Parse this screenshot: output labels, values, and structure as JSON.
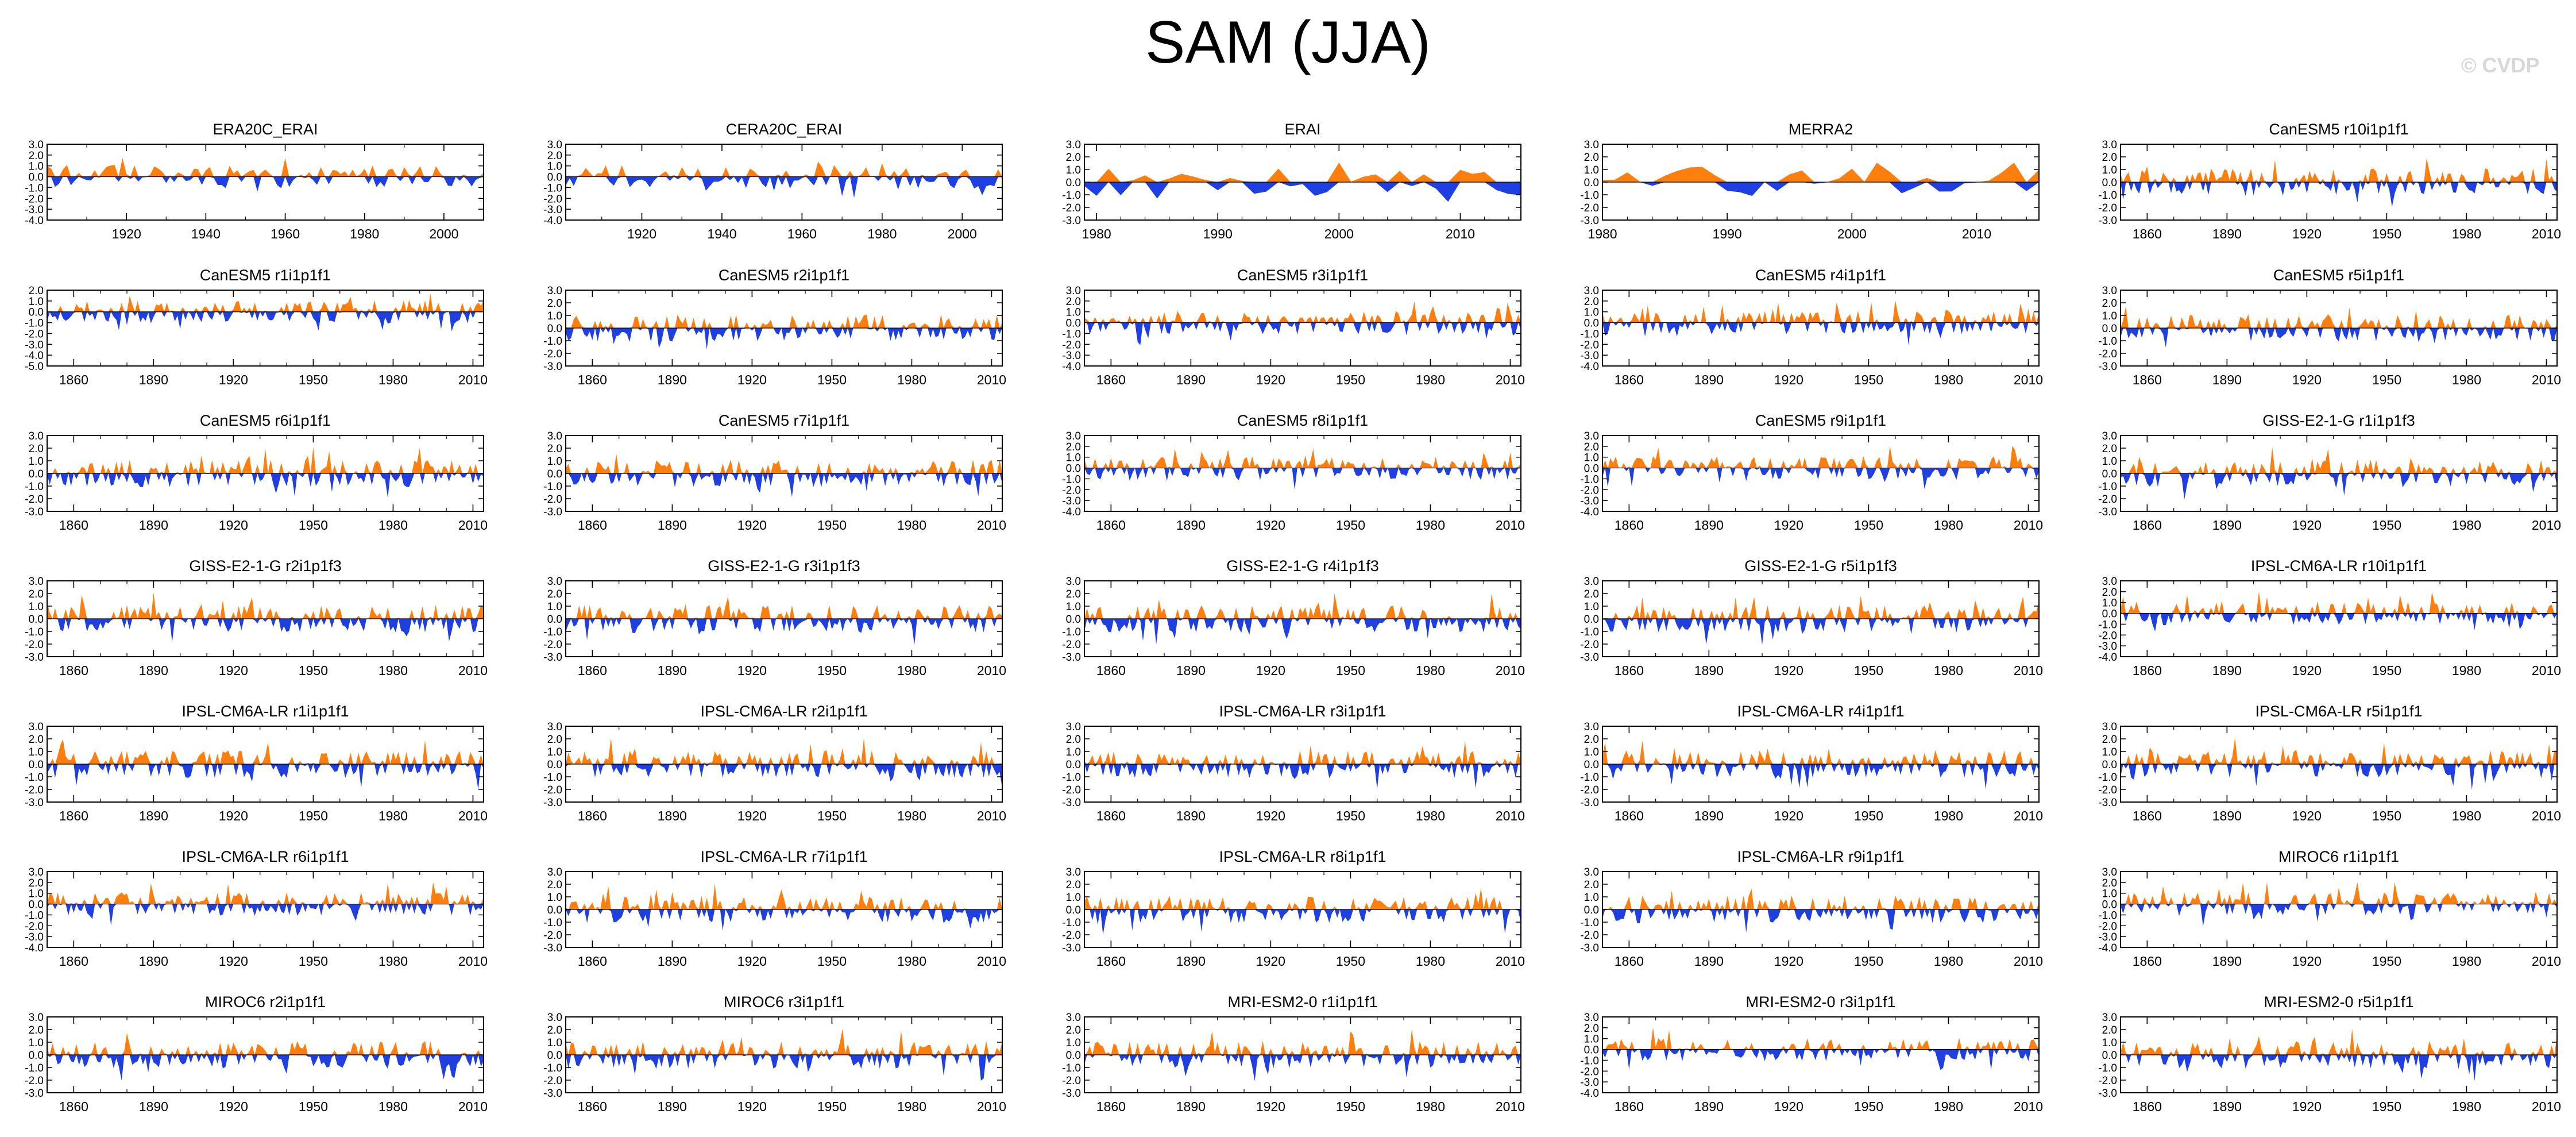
{
  "title": "SAM (JJA)",
  "watermark": "© CVDP",
  "colors": {
    "positive": "#ff7f0e",
    "negative": "#1f3fe0",
    "axis": "#000000"
  },
  "chart_data": [
    {
      "type": "area",
      "title": "ERA20C_ERAI",
      "x_range": [
        1900,
        2010
      ],
      "xticks": [
        1920,
        1940,
        1960,
        1980,
        2000
      ],
      "yticks": [
        "3.0",
        "2.0",
        "1.0",
        "0.0",
        "-1.0",
        "-2.0",
        "-3.0",
        "-4.0"
      ],
      "ylim": [
        -4,
        3
      ],
      "seed": 11
    },
    {
      "type": "area",
      "title": "CERA20C_ERAI",
      "x_range": [
        1901,
        2010
      ],
      "xticks": [
        1920,
        1940,
        1960,
        1980,
        2000
      ],
      "yticks": [
        "3.0",
        "2.0",
        "1.0",
        "0.0",
        "-1.0",
        "-2.0",
        "-3.0",
        "-4.0"
      ],
      "ylim": [
        -4,
        3
      ],
      "seed": 12
    },
    {
      "type": "area",
      "title": "ERAI",
      "x_range": [
        1979,
        2015
      ],
      "xticks": [
        1980,
        1990,
        2000,
        2010
      ],
      "yticks": [
        "3.0",
        "2.0",
        "1.0",
        "0.0",
        "-1.0",
        "-2.0",
        "-3.0"
      ],
      "ylim": [
        -3,
        3
      ],
      "seed": 13
    },
    {
      "type": "area",
      "title": "MERRA2",
      "x_range": [
        1980,
        2015
      ],
      "xticks": [
        1980,
        1990,
        2000,
        2010
      ],
      "yticks": [
        "3.0",
        "2.0",
        "1.0",
        "0.0",
        "-1.0",
        "-2.0",
        "-3.0"
      ],
      "ylim": [
        -3,
        3
      ],
      "seed": 14
    },
    {
      "type": "area",
      "title": "CanESM5 r10i1p1f1",
      "x_range": [
        1850,
        2014
      ],
      "xticks": [
        1860,
        1890,
        1920,
        1950,
        1980,
        2010
      ],
      "yticks": [
        "3.0",
        "2.0",
        "1.0",
        "0.0",
        "-1.0",
        "-2.0",
        "-3.0"
      ],
      "ylim": [
        -3,
        3
      ],
      "seed": 15
    },
    {
      "type": "area",
      "title": "CanESM5 r1i1p1f1",
      "x_range": [
        1850,
        2014
      ],
      "xticks": [
        1860,
        1890,
        1920,
        1950,
        1980,
        2010
      ],
      "yticks": [
        "2.0",
        "1.0",
        "0.0",
        "-1.0",
        "-2.0",
        "-3.0",
        "-4.0",
        "-5.0"
      ],
      "ylim": [
        -5,
        2
      ],
      "seed": 21
    },
    {
      "type": "area",
      "title": "CanESM5 r2i1p1f1",
      "x_range": [
        1850,
        2014
      ],
      "xticks": [
        1860,
        1890,
        1920,
        1950,
        1980,
        2010
      ],
      "yticks": [
        "3.0",
        "2.0",
        "1.0",
        "0.0",
        "-1.0",
        "-2.0",
        "-3.0"
      ],
      "ylim": [
        -3,
        3
      ],
      "seed": 22
    },
    {
      "type": "area",
      "title": "CanESM5 r3i1p1f1",
      "x_range": [
        1850,
        2014
      ],
      "xticks": [
        1860,
        1890,
        1920,
        1950,
        1980,
        2010
      ],
      "yticks": [
        "3.0",
        "2.0",
        "1.0",
        "0.0",
        "-1.0",
        "-2.0",
        "-3.0",
        "-4.0"
      ],
      "ylim": [
        -4,
        3
      ],
      "seed": 23
    },
    {
      "type": "area",
      "title": "CanESM5 r4i1p1f1",
      "x_range": [
        1850,
        2014
      ],
      "xticks": [
        1860,
        1890,
        1920,
        1950,
        1980,
        2010
      ],
      "yticks": [
        "3.0",
        "2.0",
        "1.0",
        "0.0",
        "-1.0",
        "-2.0",
        "-3.0",
        "-4.0"
      ],
      "ylim": [
        -4,
        3
      ],
      "seed": 24
    },
    {
      "type": "area",
      "title": "CanESM5 r5i1p1f1",
      "x_range": [
        1850,
        2014
      ],
      "xticks": [
        1860,
        1890,
        1920,
        1950,
        1980,
        2010
      ],
      "yticks": [
        "3.0",
        "2.0",
        "1.0",
        "0.0",
        "-1.0",
        "-2.0",
        "-3.0"
      ],
      "ylim": [
        -3,
        3
      ],
      "seed": 25
    },
    {
      "type": "area",
      "title": "CanESM5 r6i1p1f1",
      "x_range": [
        1850,
        2014
      ],
      "xticks": [
        1860,
        1890,
        1920,
        1950,
        1980,
        2010
      ],
      "yticks": [
        "3.0",
        "2.0",
        "1.0",
        "0.0",
        "-1.0",
        "-2.0",
        "-3.0"
      ],
      "ylim": [
        -3,
        3
      ],
      "seed": 31
    },
    {
      "type": "area",
      "title": "CanESM5 r7i1p1f1",
      "x_range": [
        1850,
        2014
      ],
      "xticks": [
        1860,
        1890,
        1920,
        1950,
        1980,
        2010
      ],
      "yticks": [
        "3.0",
        "2.0",
        "1.0",
        "0.0",
        "-1.0",
        "-2.0",
        "-3.0"
      ],
      "ylim": [
        -3,
        3
      ],
      "seed": 32
    },
    {
      "type": "area",
      "title": "CanESM5 r8i1p1f1",
      "x_range": [
        1850,
        2014
      ],
      "xticks": [
        1860,
        1890,
        1920,
        1950,
        1980,
        2010
      ],
      "yticks": [
        "3.0",
        "2.0",
        "1.0",
        "0.0",
        "-1.0",
        "-2.0",
        "-3.0",
        "-4.0"
      ],
      "ylim": [
        -4,
        3
      ],
      "seed": 33
    },
    {
      "type": "area",
      "title": "CanESM5 r9i1p1f1",
      "x_range": [
        1850,
        2014
      ],
      "xticks": [
        1860,
        1890,
        1920,
        1950,
        1980,
        2010
      ],
      "yticks": [
        "3.0",
        "2.0",
        "1.0",
        "0.0",
        "-1.0",
        "-2.0",
        "-3.0",
        "-4.0"
      ],
      "ylim": [
        -4,
        3
      ],
      "seed": 34
    },
    {
      "type": "area",
      "title": "GISS-E2-1-G r1i1p1f3",
      "x_range": [
        1850,
        2014
      ],
      "xticks": [
        1860,
        1890,
        1920,
        1950,
        1980,
        2010
      ],
      "yticks": [
        "3.0",
        "2.0",
        "1.0",
        "0.0",
        "-1.0",
        "-2.0",
        "-3.0"
      ],
      "ylim": [
        -3,
        3
      ],
      "seed": 35
    },
    {
      "type": "area",
      "title": "GISS-E2-1-G r2i1p1f3",
      "x_range": [
        1850,
        2014
      ],
      "xticks": [
        1860,
        1890,
        1920,
        1950,
        1980,
        2010
      ],
      "yticks": [
        "3.0",
        "2.0",
        "1.0",
        "0.0",
        "-1.0",
        "-2.0",
        "-3.0"
      ],
      "ylim": [
        -3,
        3
      ],
      "seed": 41
    },
    {
      "type": "area",
      "title": "GISS-E2-1-G r3i1p1f3",
      "x_range": [
        1850,
        2014
      ],
      "xticks": [
        1860,
        1890,
        1920,
        1950,
        1980,
        2010
      ],
      "yticks": [
        "3.0",
        "2.0",
        "1.0",
        "0.0",
        "-1.0",
        "-2.0",
        "-3.0"
      ],
      "ylim": [
        -3,
        3
      ],
      "seed": 42
    },
    {
      "type": "area",
      "title": "GISS-E2-1-G r4i1p1f3",
      "x_range": [
        1850,
        2014
      ],
      "xticks": [
        1860,
        1890,
        1920,
        1950,
        1980,
        2010
      ],
      "yticks": [
        "3.0",
        "2.0",
        "1.0",
        "0.0",
        "-1.0",
        "-2.0",
        "-3.0"
      ],
      "ylim": [
        -3,
        3
      ],
      "seed": 43
    },
    {
      "type": "area",
      "title": "GISS-E2-1-G r5i1p1f3",
      "x_range": [
        1850,
        2014
      ],
      "xticks": [
        1860,
        1890,
        1920,
        1950,
        1980,
        2010
      ],
      "yticks": [
        "3.0",
        "2.0",
        "1.0",
        "0.0",
        "-1.0",
        "-2.0",
        "-3.0"
      ],
      "ylim": [
        -3,
        3
      ],
      "seed": 44
    },
    {
      "type": "area",
      "title": "IPSL-CM6A-LR r10i1p1f1",
      "x_range": [
        1850,
        2014
      ],
      "xticks": [
        1860,
        1890,
        1920,
        1950,
        1980,
        2010
      ],
      "yticks": [
        "3.0",
        "2.0",
        "1.0",
        "0.0",
        "-1.0",
        "-2.0",
        "-3.0",
        "-4.0"
      ],
      "ylim": [
        -4,
        3
      ],
      "seed": 45
    },
    {
      "type": "area",
      "title": "IPSL-CM6A-LR r1i1p1f1",
      "x_range": [
        1850,
        2014
      ],
      "xticks": [
        1860,
        1890,
        1920,
        1950,
        1980,
        2010
      ],
      "yticks": [
        "3.0",
        "2.0",
        "1.0",
        "0.0",
        "-1.0",
        "-2.0",
        "-3.0"
      ],
      "ylim": [
        -3,
        3
      ],
      "seed": 51
    },
    {
      "type": "area",
      "title": "IPSL-CM6A-LR r2i1p1f1",
      "x_range": [
        1850,
        2014
      ],
      "xticks": [
        1860,
        1890,
        1920,
        1950,
        1980,
        2010
      ],
      "yticks": [
        "3.0",
        "2.0",
        "1.0",
        "0.0",
        "-1.0",
        "-2.0",
        "-3.0"
      ],
      "ylim": [
        -3,
        3
      ],
      "seed": 52
    },
    {
      "type": "area",
      "title": "IPSL-CM6A-LR r3i1p1f1",
      "x_range": [
        1850,
        2014
      ],
      "xticks": [
        1860,
        1890,
        1920,
        1950,
        1980,
        2010
      ],
      "yticks": [
        "3.0",
        "2.0",
        "1.0",
        "0.0",
        "-1.0",
        "-2.0",
        "-3.0"
      ],
      "ylim": [
        -3,
        3
      ],
      "seed": 53
    },
    {
      "type": "area",
      "title": "IPSL-CM6A-LR r4i1p1f1",
      "x_range": [
        1850,
        2014
      ],
      "xticks": [
        1860,
        1890,
        1920,
        1950,
        1980,
        2010
      ],
      "yticks": [
        "3.0",
        "2.0",
        "1.0",
        "0.0",
        "-1.0",
        "-2.0",
        "-3.0"
      ],
      "ylim": [
        -3,
        3
      ],
      "seed": 54
    },
    {
      "type": "area",
      "title": "IPSL-CM6A-LR r5i1p1f1",
      "x_range": [
        1850,
        2014
      ],
      "xticks": [
        1860,
        1890,
        1920,
        1950,
        1980,
        2010
      ],
      "yticks": [
        "3.0",
        "2.0",
        "1.0",
        "0.0",
        "-1.0",
        "-2.0",
        "-3.0"
      ],
      "ylim": [
        -3,
        3
      ],
      "seed": 55
    },
    {
      "type": "area",
      "title": "IPSL-CM6A-LR r6i1p1f1",
      "x_range": [
        1850,
        2014
      ],
      "xticks": [
        1860,
        1890,
        1920,
        1950,
        1980,
        2010
      ],
      "yticks": [
        "3.0",
        "2.0",
        "1.0",
        "0.0",
        "-1.0",
        "-2.0",
        "-3.0",
        "-4.0"
      ],
      "ylim": [
        -4,
        3
      ],
      "seed": 61
    },
    {
      "type": "area",
      "title": "IPSL-CM6A-LR r7i1p1f1",
      "x_range": [
        1850,
        2014
      ],
      "xticks": [
        1860,
        1890,
        1920,
        1950,
        1980,
        2010
      ],
      "yticks": [
        "3.0",
        "2.0",
        "1.0",
        "0.0",
        "-1.0",
        "-2.0",
        "-3.0"
      ],
      "ylim": [
        -3,
        3
      ],
      "seed": 62
    },
    {
      "type": "area",
      "title": "IPSL-CM6A-LR r8i1p1f1",
      "x_range": [
        1850,
        2014
      ],
      "xticks": [
        1860,
        1890,
        1920,
        1950,
        1980,
        2010
      ],
      "yticks": [
        "3.0",
        "2.0",
        "1.0",
        "0.0",
        "-1.0",
        "-2.0",
        "-3.0"
      ],
      "ylim": [
        -3,
        3
      ],
      "seed": 63
    },
    {
      "type": "area",
      "title": "IPSL-CM6A-LR r9i1p1f1",
      "x_range": [
        1850,
        2014
      ],
      "xticks": [
        1860,
        1890,
        1920,
        1950,
        1980,
        2010
      ],
      "yticks": [
        "3.0",
        "2.0",
        "1.0",
        "0.0",
        "-1.0",
        "-2.0",
        "-3.0"
      ],
      "ylim": [
        -3,
        3
      ],
      "seed": 64
    },
    {
      "type": "area",
      "title": "MIROC6 r1i1p1f1",
      "x_range": [
        1850,
        2014
      ],
      "xticks": [
        1860,
        1890,
        1920,
        1950,
        1980,
        2010
      ],
      "yticks": [
        "3.0",
        "2.0",
        "1.0",
        "0.0",
        "-1.0",
        "-2.0",
        "-3.0",
        "-4.0"
      ],
      "ylim": [
        -4,
        3
      ],
      "seed": 65
    },
    {
      "type": "area",
      "title": "MIROC6 r2i1p1f1",
      "x_range": [
        1850,
        2014
      ],
      "xticks": [
        1860,
        1890,
        1920,
        1950,
        1980,
        2010
      ],
      "yticks": [
        "3.0",
        "2.0",
        "1.0",
        "0.0",
        "-1.0",
        "-2.0",
        "-3.0"
      ],
      "ylim": [
        -3,
        3
      ],
      "seed": 71
    },
    {
      "type": "area",
      "title": "MIROC6 r3i1p1f1",
      "x_range": [
        1850,
        2014
      ],
      "xticks": [
        1860,
        1890,
        1920,
        1950,
        1980,
        2010
      ],
      "yticks": [
        "3.0",
        "2.0",
        "1.0",
        "0.0",
        "-1.0",
        "-2.0",
        "-3.0"
      ],
      "ylim": [
        -3,
        3
      ],
      "seed": 72
    },
    {
      "type": "area",
      "title": "MRI-ESM2-0 r1i1p1f1",
      "x_range": [
        1850,
        2014
      ],
      "xticks": [
        1860,
        1890,
        1920,
        1950,
        1980,
        2010
      ],
      "yticks": [
        "3.0",
        "2.0",
        "1.0",
        "0.0",
        "-1.0",
        "-2.0",
        "-3.0"
      ],
      "ylim": [
        -3,
        3
      ],
      "seed": 73
    },
    {
      "type": "area",
      "title": "MRI-ESM2-0 r3i1p1f1",
      "x_range": [
        1850,
        2014
      ],
      "xticks": [
        1860,
        1890,
        1920,
        1950,
        1980,
        2010
      ],
      "yticks": [
        "3.0",
        "2.0",
        "1.0",
        "0.0",
        "-1.0",
        "-2.0",
        "-3.0",
        "-4.0"
      ],
      "ylim": [
        -4,
        3
      ],
      "seed": 74
    },
    {
      "type": "area",
      "title": "MRI-ESM2-0 r5i1p1f1",
      "x_range": [
        1850,
        2014
      ],
      "xticks": [
        1860,
        1890,
        1920,
        1950,
        1980,
        2010
      ],
      "yticks": [
        "3.0",
        "2.0",
        "1.0",
        "0.0",
        "-1.0",
        "-2.0",
        "-3.0"
      ],
      "ylim": [
        -3,
        3
      ],
      "seed": 75
    }
  ]
}
